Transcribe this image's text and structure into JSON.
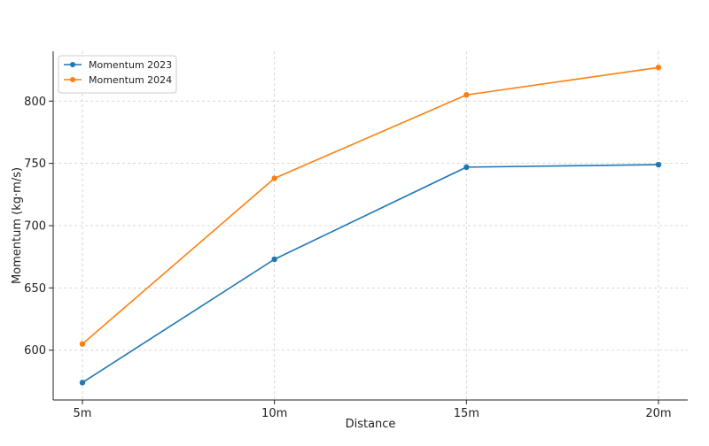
{
  "chart_data": {
    "type": "line",
    "title": "",
    "xlabel": "Distance",
    "ylabel": "Momentum (kg·m/s)",
    "categories": [
      "5m",
      "10m",
      "15m",
      "20m"
    ],
    "ylim": [
      560,
      840
    ],
    "yticks": [
      600,
      650,
      700,
      750,
      800
    ],
    "grid": true,
    "legend_position": "top-left",
    "series": [
      {
        "name": "Momentum 2023",
        "color": "#1f77b4",
        "values": [
          574,
          673,
          747,
          749
        ]
      },
      {
        "name": "Momentum 2024",
        "color": "#ff7f0e",
        "values": [
          605,
          738,
          805,
          827
        ]
      }
    ]
  }
}
